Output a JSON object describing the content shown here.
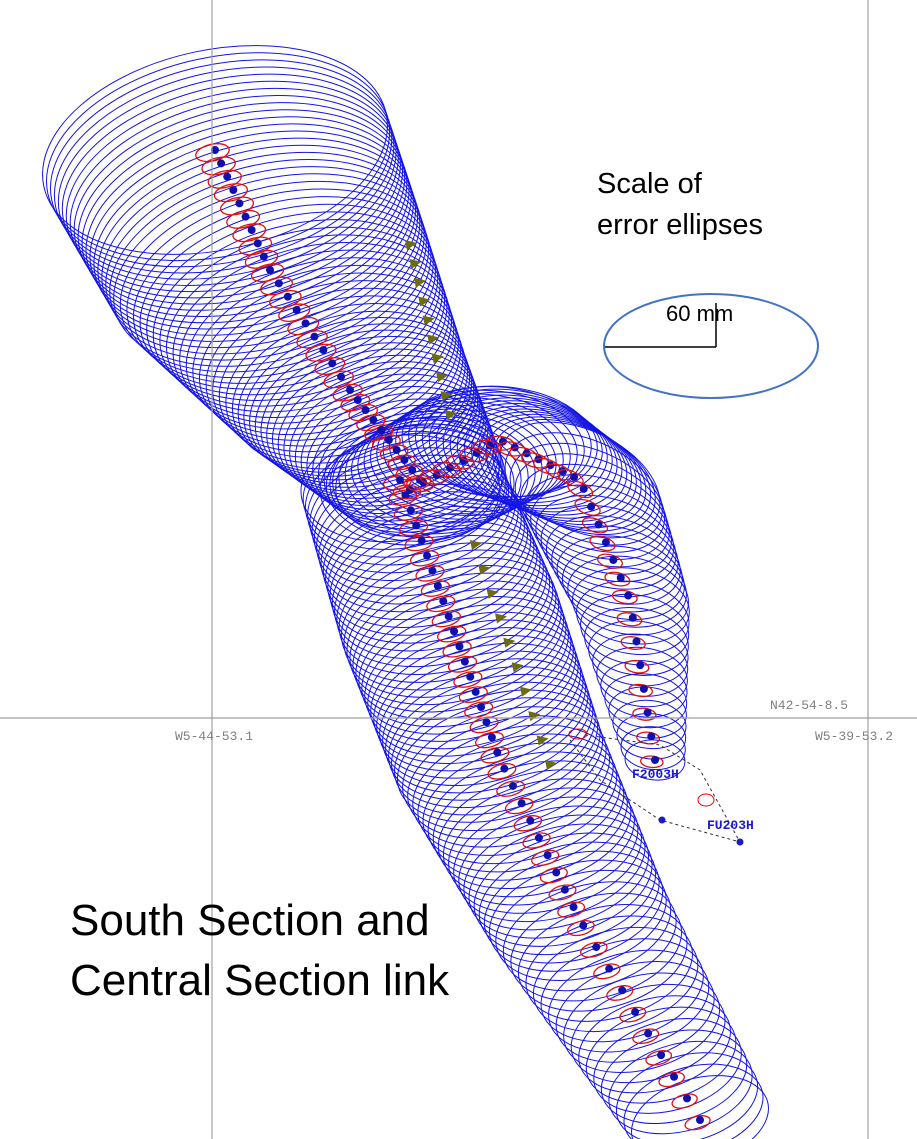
{
  "scale_note": {
    "line1": "Scale of",
    "line2": "error ellipses",
    "length": "60 mm"
  },
  "caption": {
    "line1": "South Section and",
    "line2": "Central Section link"
  },
  "coordinates": {
    "west_left": "W5-44-53.1",
    "west_right": "W5-39-53.2",
    "north": "N42-54-8.5"
  },
  "stations": {
    "first": "F2003H",
    "second": "FU203H"
  }
}
